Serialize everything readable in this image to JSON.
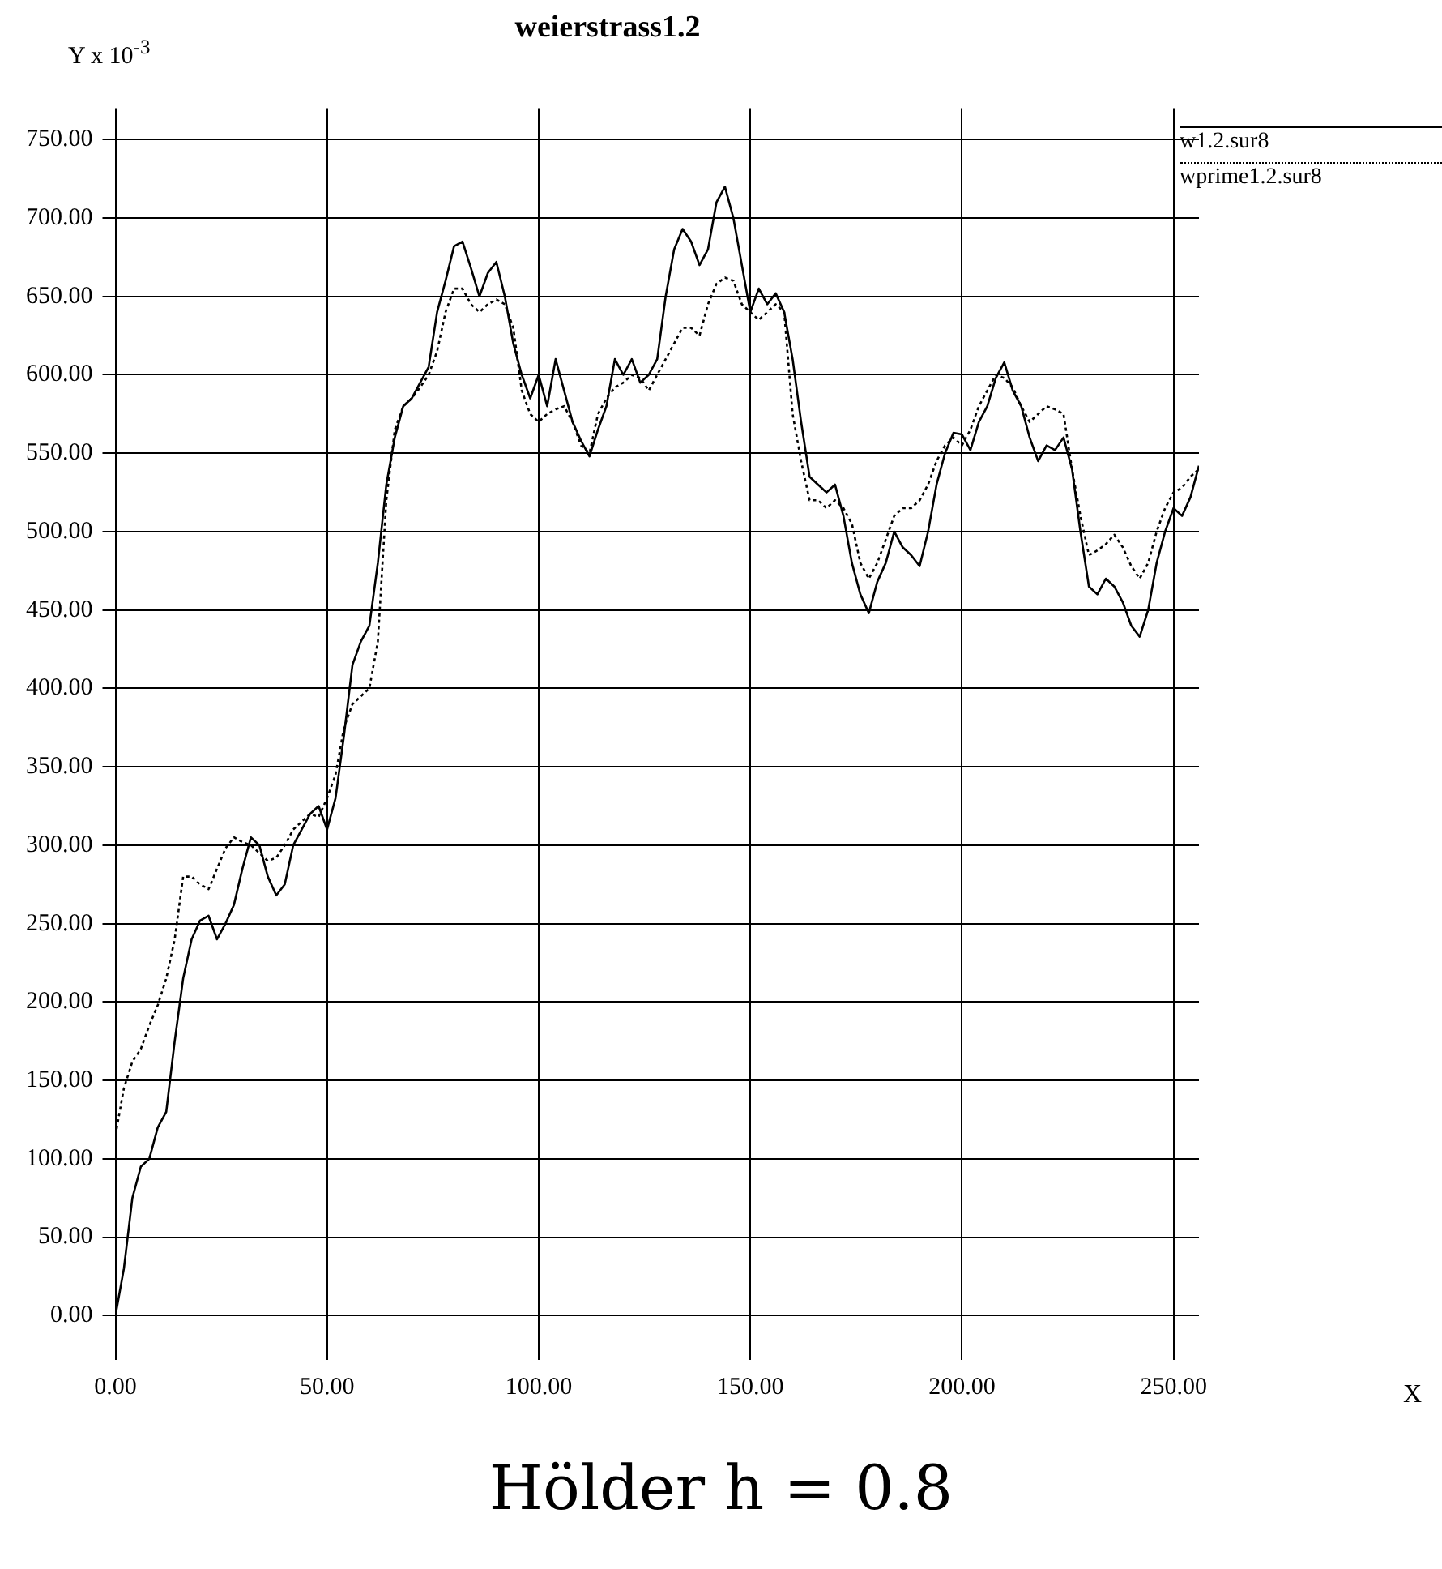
{
  "chart_data": {
    "type": "line",
    "title": "weierstrass1.2",
    "ylabel": "Y x 10$^{-3}$",
    "annotations": [
      "Hölder h = 0.8",
      "X"
    ],
    "x": [
      0,
      2,
      4,
      6,
      8,
      10,
      12,
      14,
      16,
      18,
      20,
      22,
      24,
      26,
      28,
      30,
      32,
      34,
      36,
      38,
      40,
      42,
      44,
      46,
      48,
      50,
      52,
      54,
      56,
      58,
      60,
      62,
      64,
      66,
      68,
      70,
      72,
      74,
      76,
      78,
      80,
      82,
      84,
      86,
      88,
      90,
      92,
      94,
      96,
      98,
      100,
      102,
      104,
      106,
      108,
      110,
      112,
      114,
      116,
      118,
      120,
      122,
      124,
      126,
      128,
      130,
      132,
      134,
      136,
      138,
      140,
      142,
      144,
      146,
      148,
      150,
      152,
      154,
      156,
      158,
      160,
      162,
      164,
      166,
      168,
      170,
      172,
      174,
      176,
      178,
      180,
      182,
      184,
      186,
      188,
      190,
      192,
      194,
      196,
      198,
      200,
      202,
      204,
      206,
      208,
      210,
      212,
      214,
      216,
      218,
      220,
      222,
      224,
      226,
      228,
      230,
      232,
      234,
      236,
      238,
      240,
      242,
      244,
      246,
      248,
      250,
      252,
      254,
      256
    ],
    "series": [
      {
        "name": "w1.2.sur8",
        "color": "#000000",
        "line_style": "solid",
        "values": [
          0,
          30,
          75,
          95,
          100,
          120,
          130,
          175,
          215,
          240,
          252,
          255,
          240,
          250,
          262,
          285,
          305,
          300,
          280,
          268,
          275,
          300,
          310,
          320,
          325,
          310,
          330,
          370,
          415,
          430,
          440,
          480,
          530,
          560,
          580,
          585,
          595,
          605,
          640,
          660,
          682,
          685,
          668,
          650,
          665,
          672,
          650,
          620,
          600,
          585,
          600,
          580,
          610,
          590,
          570,
          558,
          548,
          565,
          580,
          610,
          600,
          610,
          595,
          600,
          610,
          650,
          680,
          693,
          685,
          670,
          680,
          710,
          720,
          700,
          670,
          640,
          655,
          645,
          652,
          640,
          610,
          570,
          535,
          530,
          525,
          530,
          510,
          480,
          460,
          448,
          468,
          480,
          500,
          490,
          485,
          478,
          500,
          530,
          550,
          563,
          562,
          552,
          570,
          580,
          598,
          608,
          590,
          580,
          560,
          545,
          555,
          552,
          560,
          540,
          500,
          465,
          460,
          470,
          465,
          455,
          440,
          433,
          450,
          480,
          500,
          515,
          510,
          522,
          542
        ]
      },
      {
        "name": "wprime1.2.sur8",
        "color": "#000000",
        "line_style": "dotted",
        "values": [
          115,
          145,
          162,
          170,
          185,
          198,
          215,
          240,
          280,
          280,
          275,
          272,
          285,
          298,
          305,
          302,
          300,
          295,
          290,
          292,
          300,
          310,
          315,
          320,
          318,
          330,
          345,
          375,
          390,
          395,
          400,
          430,
          520,
          565,
          580,
          585,
          592,
          600,
          615,
          640,
          655,
          655,
          645,
          640,
          645,
          648,
          645,
          630,
          590,
          575,
          570,
          575,
          578,
          580,
          570,
          555,
          550,
          575,
          585,
          592,
          595,
          600,
          598,
          590,
          600,
          610,
          620,
          630,
          630,
          625,
          645,
          658,
          662,
          660,
          645,
          640,
          635,
          640,
          645,
          640,
          575,
          545,
          520,
          520,
          515,
          520,
          515,
          505,
          480,
          470,
          480,
          495,
          510,
          515,
          515,
          520,
          530,
          545,
          555,
          560,
          555,
          565,
          580,
          590,
          600,
          598,
          592,
          580,
          570,
          575,
          580,
          578,
          575,
          540,
          510,
          485,
          488,
          492,
          498,
          490,
          478,
          470,
          480,
          500,
          515,
          525,
          528,
          535,
          540
        ]
      }
    ],
    "xlim": [
      0,
      256
    ],
    "ylim": [
      -20,
      770
    ],
    "xticks": [
      {
        "value": 0,
        "label": "0.00"
      },
      {
        "value": 50,
        "label": "50.00"
      },
      {
        "value": 100,
        "label": "100.00"
      },
      {
        "value": 150,
        "label": "150.00"
      },
      {
        "value": 200,
        "label": "200.00"
      },
      {
        "value": 250,
        "label": "250.00"
      }
    ],
    "yticks": [
      {
        "value": 0,
        "label": "0.00"
      },
      {
        "value": 50,
        "label": "50.00"
      },
      {
        "value": 100,
        "label": "100.00"
      },
      {
        "value": 150,
        "label": "150.00"
      },
      {
        "value": 200,
        "label": "200.00"
      },
      {
        "value": 250,
        "label": "250.00"
      },
      {
        "value": 300,
        "label": "300.00"
      },
      {
        "value": 350,
        "label": "350.00"
      },
      {
        "value": 400,
        "label": "400.00"
      },
      {
        "value": 450,
        "label": "450.00"
      },
      {
        "value": 500,
        "label": "500.00"
      },
      {
        "value": 550,
        "label": "550.00"
      },
      {
        "value": 600,
        "label": "600.00"
      },
      {
        "value": 650,
        "label": "650.00"
      },
      {
        "value": 700,
        "label": "700.00"
      },
      {
        "value": 750,
        "label": "750.00"
      }
    ],
    "grid": true,
    "legend": "top right",
    "marker": "none"
  }
}
